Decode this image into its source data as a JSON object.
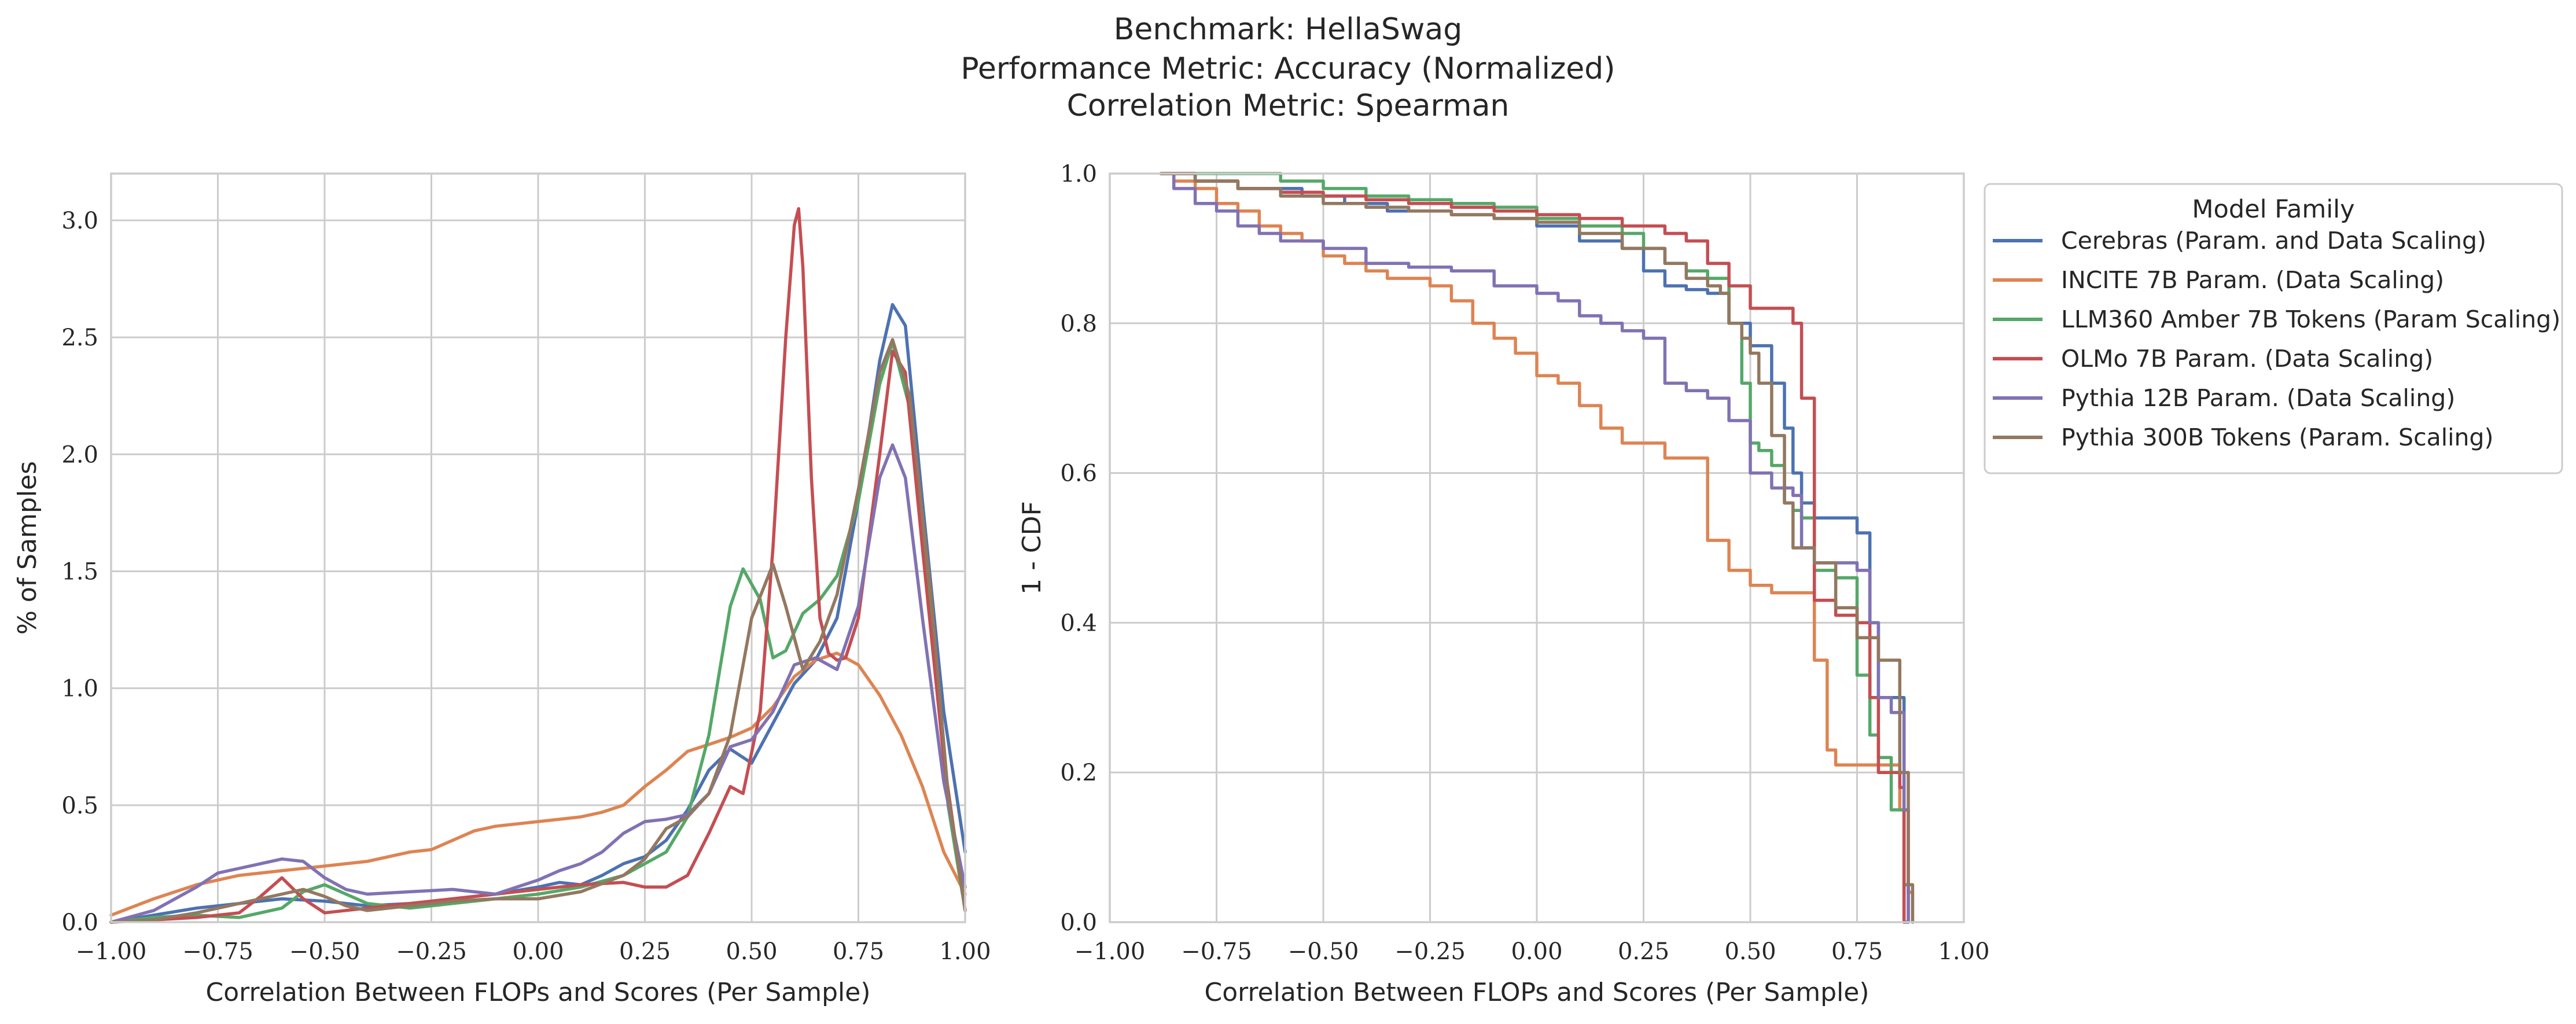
{
  "suptitle": {
    "line1": "Benchmark: HellaSwag",
    "line2": "Performance Metric: Accuracy (Normalized)",
    "line3": "Correlation Metric: Spearman"
  },
  "colors": [
    "#4c72b0",
    "#dd8452",
    "#55a868",
    "#c44e52",
    "#8172b3",
    "#937860"
  ],
  "chart_data": [
    {
      "type": "line",
      "xlabel": "Correlation Between FLOPs and Scores (Per Sample)",
      "ylabel": "% of Samples",
      "xlim": [
        -1.0,
        1.0
      ],
      "ylim": [
        0.0,
        3.2
      ],
      "xticks": [
        "−1.00",
        "−0.75",
        "−0.50",
        "−0.25",
        "0.00",
        "0.25",
        "0.50",
        "0.75",
        "1.00"
      ],
      "yticks": [
        "0.0",
        "0.5",
        "1.0",
        "1.5",
        "2.0",
        "2.5",
        "3.0"
      ],
      "grid": true,
      "series": [
        {
          "name": "Cerebras (Param. and Data Scaling)",
          "x": [
            -1.0,
            -0.9,
            -0.8,
            -0.7,
            -0.6,
            -0.5,
            -0.4,
            -0.3,
            -0.2,
            -0.1,
            0.0,
            0.05,
            0.1,
            0.15,
            0.2,
            0.25,
            0.3,
            0.35,
            0.4,
            0.45,
            0.5,
            0.55,
            0.6,
            0.65,
            0.7,
            0.75,
            0.8,
            0.83,
            0.86,
            0.9,
            0.95,
            1.0
          ],
          "y": [
            0.0,
            0.03,
            0.06,
            0.08,
            0.1,
            0.09,
            0.07,
            0.08,
            0.1,
            0.12,
            0.15,
            0.17,
            0.16,
            0.2,
            0.25,
            0.28,
            0.35,
            0.48,
            0.65,
            0.74,
            0.68,
            0.85,
            1.02,
            1.12,
            1.3,
            1.8,
            2.4,
            2.64,
            2.55,
            1.8,
            0.9,
            0.3
          ]
        },
        {
          "name": "INCITE 7B Param. (Data Scaling)",
          "x": [
            -1.0,
            -0.9,
            -0.8,
            -0.7,
            -0.6,
            -0.5,
            -0.4,
            -0.3,
            -0.25,
            -0.2,
            -0.15,
            -0.1,
            -0.05,
            0.0,
            0.05,
            0.1,
            0.15,
            0.2,
            0.25,
            0.3,
            0.35,
            0.4,
            0.45,
            0.5,
            0.55,
            0.6,
            0.65,
            0.7,
            0.75,
            0.8,
            0.85,
            0.9,
            0.95,
            1.0
          ],
          "y": [
            0.03,
            0.1,
            0.16,
            0.2,
            0.22,
            0.24,
            0.26,
            0.3,
            0.31,
            0.35,
            0.39,
            0.41,
            0.42,
            0.43,
            0.44,
            0.45,
            0.47,
            0.5,
            0.58,
            0.65,
            0.73,
            0.76,
            0.79,
            0.83,
            0.92,
            1.05,
            1.12,
            1.15,
            1.1,
            0.97,
            0.8,
            0.58,
            0.3,
            0.12
          ]
        },
        {
          "name": "LLM360 Amber 7B Tokens (Param Scaling)",
          "x": [
            -1.0,
            -0.9,
            -0.8,
            -0.7,
            -0.6,
            -0.55,
            -0.5,
            -0.45,
            -0.4,
            -0.3,
            -0.2,
            -0.1,
            0.0,
            0.1,
            0.2,
            0.3,
            0.35,
            0.4,
            0.45,
            0.48,
            0.52,
            0.55,
            0.58,
            0.62,
            0.66,
            0.7,
            0.75,
            0.8,
            0.83,
            0.87,
            0.92,
            0.96,
            1.0
          ],
          "y": [
            0.0,
            0.02,
            0.03,
            0.02,
            0.06,
            0.13,
            0.16,
            0.12,
            0.08,
            0.06,
            0.08,
            0.1,
            0.12,
            0.15,
            0.2,
            0.3,
            0.45,
            0.8,
            1.35,
            1.51,
            1.38,
            1.13,
            1.16,
            1.32,
            1.38,
            1.48,
            1.8,
            2.3,
            2.48,
            2.2,
            1.3,
            0.5,
            0.05
          ]
        },
        {
          "name": "OLMo 7B Param. (Data Scaling)",
          "x": [
            -1.0,
            -0.9,
            -0.8,
            -0.7,
            -0.65,
            -0.6,
            -0.55,
            -0.5,
            -0.4,
            -0.3,
            -0.2,
            -0.1,
            0.0,
            0.1,
            0.2,
            0.25,
            0.3,
            0.35,
            0.4,
            0.45,
            0.48,
            0.52,
            0.55,
            0.58,
            0.6,
            0.61,
            0.62,
            0.64,
            0.66,
            0.68,
            0.7,
            0.72,
            0.75,
            0.8,
            0.83,
            0.86,
            0.9,
            0.95,
            1.0
          ],
          "y": [
            0.0,
            0.01,
            0.02,
            0.04,
            0.11,
            0.19,
            0.1,
            0.04,
            0.06,
            0.08,
            0.1,
            0.12,
            0.14,
            0.16,
            0.17,
            0.15,
            0.15,
            0.2,
            0.38,
            0.58,
            0.55,
            0.9,
            1.6,
            2.5,
            2.98,
            3.05,
            2.8,
            1.9,
            1.3,
            1.15,
            1.12,
            1.13,
            1.3,
            2.0,
            2.44,
            2.35,
            1.6,
            0.7,
            0.05
          ]
        },
        {
          "name": "Pythia 12B Param. (Data Scaling)",
          "x": [
            -1.0,
            -0.9,
            -0.8,
            -0.75,
            -0.7,
            -0.65,
            -0.6,
            -0.55,
            -0.5,
            -0.45,
            -0.4,
            -0.3,
            -0.2,
            -0.1,
            0.0,
            0.05,
            0.1,
            0.15,
            0.2,
            0.25,
            0.3,
            0.35,
            0.4,
            0.45,
            0.5,
            0.55,
            0.6,
            0.65,
            0.7,
            0.75,
            0.8,
            0.83,
            0.86,
            0.9,
            0.95,
            1.0
          ],
          "y": [
            0.0,
            0.05,
            0.15,
            0.21,
            0.23,
            0.25,
            0.27,
            0.26,
            0.19,
            0.14,
            0.12,
            0.13,
            0.14,
            0.12,
            0.18,
            0.22,
            0.25,
            0.3,
            0.38,
            0.43,
            0.44,
            0.46,
            0.55,
            0.75,
            0.78,
            0.9,
            1.1,
            1.13,
            1.08,
            1.35,
            1.9,
            2.04,
            1.9,
            1.3,
            0.6,
            0.15
          ]
        },
        {
          "name": "Pythia 300B Tokens (Param. Scaling)",
          "x": [
            -1.0,
            -0.9,
            -0.8,
            -0.7,
            -0.6,
            -0.55,
            -0.5,
            -0.45,
            -0.4,
            -0.3,
            -0.2,
            -0.1,
            0.0,
            0.1,
            0.2,
            0.25,
            0.3,
            0.35,
            0.4,
            0.45,
            0.5,
            0.55,
            0.58,
            0.62,
            0.66,
            0.7,
            0.75,
            0.8,
            0.83,
            0.87,
            0.92,
            0.96,
            1.0
          ],
          "y": [
            0.0,
            0.01,
            0.04,
            0.08,
            0.12,
            0.14,
            0.11,
            0.07,
            0.05,
            0.07,
            0.09,
            0.1,
            0.1,
            0.13,
            0.2,
            0.27,
            0.4,
            0.45,
            0.55,
            0.8,
            1.3,
            1.53,
            1.35,
            1.08,
            1.2,
            1.4,
            1.85,
            2.35,
            2.49,
            2.25,
            1.4,
            0.55,
            0.05
          ]
        }
      ]
    },
    {
      "type": "line",
      "step": true,
      "xlabel": "Correlation Between FLOPs and Scores (Per Sample)",
      "ylabel": "1 - CDF",
      "xlim": [
        -1.0,
        1.0
      ],
      "ylim": [
        0.0,
        1.0
      ],
      "xticks": [
        "−1.00",
        "−0.75",
        "−0.50",
        "−0.25",
        "0.00",
        "0.25",
        "0.50",
        "0.75",
        "1.00"
      ],
      "yticks": [
        "0.0",
        "0.2",
        "0.4",
        "0.6",
        "0.8",
        "1.0"
      ],
      "grid": true,
      "legend": {
        "title": "Model Family",
        "placement": "outside right, top"
      },
      "series": [
        {
          "name": "Cerebras (Param. and Data Scaling)",
          "x": [
            -0.88,
            -0.8,
            -0.7,
            -0.55,
            -0.45,
            -0.35,
            -0.2,
            -0.1,
            0.0,
            0.1,
            0.2,
            0.25,
            0.3,
            0.35,
            0.4,
            0.45,
            0.5,
            0.55,
            0.58,
            0.6,
            0.62,
            0.65,
            0.7,
            0.75,
            0.78,
            0.8,
            0.84,
            0.86,
            0.87
          ],
          "y": [
            1.0,
            0.99,
            0.98,
            0.97,
            0.96,
            0.95,
            0.945,
            0.94,
            0.93,
            0.91,
            0.9,
            0.87,
            0.85,
            0.845,
            0.84,
            0.8,
            0.77,
            0.72,
            0.66,
            0.6,
            0.56,
            0.54,
            0.54,
            0.52,
            0.4,
            0.3,
            0.3,
            0.0,
            0.0
          ]
        },
        {
          "name": "INCITE 7B Param. (Data Scaling)",
          "x": [
            -0.88,
            -0.85,
            -0.8,
            -0.75,
            -0.7,
            -0.65,
            -0.6,
            -0.55,
            -0.5,
            -0.45,
            -0.4,
            -0.35,
            -0.3,
            -0.25,
            -0.2,
            -0.15,
            -0.1,
            -0.05,
            0.0,
            0.05,
            0.1,
            0.15,
            0.2,
            0.25,
            0.3,
            0.35,
            0.4,
            0.45,
            0.5,
            0.55,
            0.6,
            0.65,
            0.68,
            0.7,
            0.75,
            0.8,
            0.85,
            0.87,
            0.88
          ],
          "y": [
            1.0,
            0.99,
            0.98,
            0.96,
            0.95,
            0.93,
            0.92,
            0.91,
            0.89,
            0.88,
            0.87,
            0.86,
            0.86,
            0.85,
            0.83,
            0.8,
            0.78,
            0.76,
            0.73,
            0.72,
            0.69,
            0.66,
            0.64,
            0.64,
            0.62,
            0.62,
            0.51,
            0.47,
            0.45,
            0.44,
            0.44,
            0.35,
            0.23,
            0.21,
            0.21,
            0.21,
            0.15,
            0.04,
            0.0
          ]
        },
        {
          "name": "LLM360 Amber 7B Tokens (Param Scaling)",
          "x": [
            -0.88,
            -0.75,
            -0.6,
            -0.5,
            -0.4,
            -0.3,
            -0.2,
            -0.1,
            0.0,
            0.1,
            0.2,
            0.25,
            0.3,
            0.35,
            0.4,
            0.45,
            0.48,
            0.5,
            0.52,
            0.55,
            0.58,
            0.6,
            0.62,
            0.65,
            0.7,
            0.75,
            0.78,
            0.8,
            0.83,
            0.86,
            0.87
          ],
          "y": [
            1.0,
            1.0,
            0.99,
            0.98,
            0.97,
            0.965,
            0.96,
            0.955,
            0.94,
            0.93,
            0.92,
            0.9,
            0.88,
            0.87,
            0.86,
            0.8,
            0.72,
            0.64,
            0.63,
            0.61,
            0.56,
            0.55,
            0.54,
            0.47,
            0.46,
            0.33,
            0.25,
            0.22,
            0.15,
            0.05,
            0.0
          ]
        },
        {
          "name": "OLMo 7B Param. (Data Scaling)",
          "x": [
            -0.88,
            -0.8,
            -0.7,
            -0.6,
            -0.5,
            -0.4,
            -0.3,
            -0.2,
            -0.1,
            0.0,
            0.1,
            0.2,
            0.3,
            0.35,
            0.4,
            0.45,
            0.5,
            0.55,
            0.6,
            0.62,
            0.65,
            0.7,
            0.75,
            0.78,
            0.8,
            0.85,
            0.86
          ],
          "y": [
            1.0,
            0.99,
            0.98,
            0.975,
            0.97,
            0.965,
            0.96,
            0.955,
            0.95,
            0.945,
            0.94,
            0.93,
            0.92,
            0.91,
            0.88,
            0.85,
            0.82,
            0.82,
            0.8,
            0.7,
            0.43,
            0.41,
            0.4,
            0.3,
            0.2,
            0.18,
            0.0
          ]
        },
        {
          "name": "Pythia 12B Param. (Data Scaling)",
          "x": [
            -0.88,
            -0.85,
            -0.8,
            -0.75,
            -0.7,
            -0.65,
            -0.6,
            -0.5,
            -0.4,
            -0.3,
            -0.2,
            -0.1,
            0.0,
            0.05,
            0.1,
            0.15,
            0.2,
            0.25,
            0.3,
            0.35,
            0.4,
            0.45,
            0.5,
            0.55,
            0.6,
            0.62,
            0.65,
            0.7,
            0.75,
            0.78,
            0.8,
            0.83,
            0.86,
            0.87
          ],
          "y": [
            1.0,
            0.98,
            0.96,
            0.95,
            0.93,
            0.92,
            0.91,
            0.9,
            0.88,
            0.875,
            0.87,
            0.85,
            0.84,
            0.83,
            0.81,
            0.8,
            0.79,
            0.78,
            0.72,
            0.71,
            0.7,
            0.67,
            0.6,
            0.58,
            0.57,
            0.5,
            0.48,
            0.48,
            0.47,
            0.4,
            0.3,
            0.28,
            0.15,
            0.0
          ]
        },
        {
          "name": "Pythia 300B Tokens (Param. Scaling)",
          "x": [
            -0.88,
            -0.8,
            -0.7,
            -0.6,
            -0.5,
            -0.4,
            -0.3,
            -0.2,
            -0.1,
            0.0,
            0.1,
            0.2,
            0.3,
            0.35,
            0.4,
            0.43,
            0.45,
            0.48,
            0.5,
            0.52,
            0.55,
            0.58,
            0.6,
            0.65,
            0.7,
            0.75,
            0.8,
            0.85,
            0.87,
            0.88
          ],
          "y": [
            1.0,
            0.99,
            0.98,
            0.97,
            0.96,
            0.955,
            0.95,
            0.945,
            0.94,
            0.935,
            0.92,
            0.9,
            0.88,
            0.86,
            0.85,
            0.84,
            0.8,
            0.78,
            0.76,
            0.72,
            0.65,
            0.56,
            0.5,
            0.48,
            0.42,
            0.38,
            0.35,
            0.2,
            0.05,
            0.0
          ]
        }
      ]
    }
  ]
}
